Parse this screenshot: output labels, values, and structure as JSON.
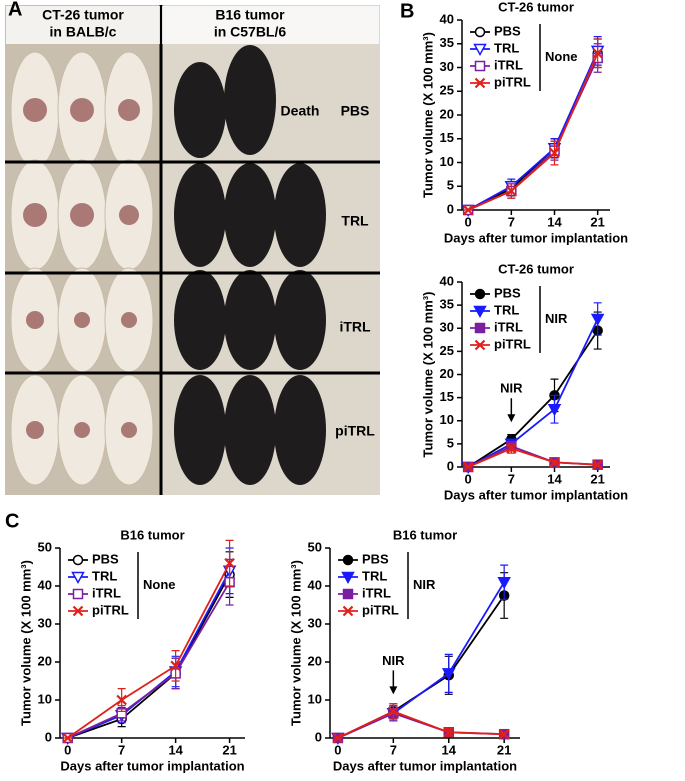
{
  "panel_labels": [
    "A",
    "B",
    "C"
  ],
  "photo_panel": {
    "columns": [
      [
        "CT-26 tumor",
        "in BALB/c"
      ],
      [
        "B16 tumor",
        "in C57BL/6"
      ]
    ],
    "rows": [
      "PBS",
      "TRL",
      "iTRL",
      "piTRL"
    ],
    "note": "Death"
  },
  "chart_data": [
    {
      "type": "line",
      "title": "CT-26 tumor",
      "xlabel": "Days after tumor implantation",
      "ylabel": "Tumor volume (X 100 mm³)",
      "x": [
        0,
        7,
        14,
        21
      ],
      "xlim": [
        -1,
        23
      ],
      "xticks": [
        0,
        7,
        14,
        21
      ],
      "ylim": [
        0,
        40
      ],
      "yticks": [
        0,
        5,
        10,
        15,
        20,
        25,
        30,
        35,
        40
      ],
      "filled": false,
      "legend": "upper left",
      "group_label": "None",
      "series": [
        {
          "name": "PBS",
          "color": "#000000",
          "marker": "circle",
          "values": [
            0,
            4.5,
            13,
            33
          ],
          "errors": [
            0,
            1.5,
            2,
            3
          ]
        },
        {
          "name": "TRL",
          "color": "#1a1aff",
          "marker": "triangle",
          "values": [
            0,
            5,
            13,
            33.5
          ],
          "errors": [
            0,
            1.5,
            2,
            3
          ]
        },
        {
          "name": "iTRL",
          "color": "#7a1fa0",
          "marker": "square",
          "values": [
            0,
            4,
            12.5,
            32
          ],
          "errors": [
            0,
            1.5,
            2,
            3
          ]
        },
        {
          "name": "piTRL",
          "color": "#e0201a",
          "marker": "star",
          "values": [
            0,
            4,
            12,
            33
          ],
          "errors": [
            0,
            1.5,
            2.5,
            3
          ]
        }
      ]
    },
    {
      "type": "line",
      "title": "CT-26 tumor",
      "xlabel": "Days after tumor implantation",
      "ylabel": "Tumor volume (X 100 mm³)",
      "x": [
        0,
        7,
        14,
        21
      ],
      "xlim": [
        -1,
        23
      ],
      "xticks": [
        0,
        7,
        14,
        21
      ],
      "ylim": [
        0,
        40
      ],
      "yticks": [
        0,
        5,
        10,
        15,
        20,
        25,
        30,
        35,
        40
      ],
      "filled": true,
      "legend": "upper left",
      "group_label": "NIR",
      "annotation": {
        "text": "NIR",
        "x": 7
      },
      "series": [
        {
          "name": "PBS",
          "color": "#000000",
          "marker": "circle",
          "values": [
            0,
            6,
            15.5,
            29.5
          ],
          "errors": [
            0,
            1,
            3.5,
            4
          ]
        },
        {
          "name": "TRL",
          "color": "#1a1aff",
          "marker": "triangle",
          "values": [
            0,
            5,
            12.5,
            32
          ],
          "errors": [
            0,
            1,
            3,
            3.5
          ]
        },
        {
          "name": "iTRL",
          "color": "#7a1fa0",
          "marker": "square",
          "values": [
            0,
            4.5,
            1,
            0.5
          ],
          "errors": [
            0,
            1,
            0.5,
            0.3
          ]
        },
        {
          "name": "piTRL",
          "color": "#e0201a",
          "marker": "star",
          "values": [
            0,
            4,
            1,
            0.5
          ],
          "errors": [
            0,
            1,
            0.5,
            0.3
          ]
        }
      ]
    },
    {
      "type": "line",
      "title": "B16 tumor",
      "xlabel": "Days after tumor implantation",
      "ylabel": "Tumor volume (X 100 mm³)",
      "x": [
        0,
        7,
        14,
        21
      ],
      "xlim": [
        -1,
        23
      ],
      "xticks": [
        0,
        7,
        14,
        21
      ],
      "ylim": [
        0,
        50
      ],
      "yticks": [
        0,
        10,
        20,
        30,
        40,
        50
      ],
      "filled": false,
      "legend": "upper left",
      "group_label": "None",
      "series": [
        {
          "name": "PBS",
          "color": "#000000",
          "marker": "circle",
          "values": [
            0,
            5,
            17,
            43
          ],
          "errors": [
            0,
            2,
            4,
            6
          ]
        },
        {
          "name": "TRL",
          "color": "#1a1aff",
          "marker": "triangle",
          "values": [
            0,
            6,
            17.5,
            44
          ],
          "errors": [
            0,
            2,
            4,
            6
          ]
        },
        {
          "name": "iTRL",
          "color": "#7a1fa0",
          "marker": "square",
          "values": [
            0,
            6.5,
            17,
            41
          ],
          "errors": [
            0,
            2,
            4,
            6
          ]
        },
        {
          "name": "piTRL",
          "color": "#e0201a",
          "marker": "star",
          "values": [
            0,
            10,
            19,
            46
          ],
          "errors": [
            0,
            3,
            4,
            6
          ]
        }
      ]
    },
    {
      "type": "line",
      "title": "B16 tumor",
      "xlabel": "Days after tumor implantation",
      "ylabel": "Tumor volume (X 100 mm³)",
      "x": [
        0,
        7,
        14,
        21
      ],
      "xlim": [
        -1,
        23
      ],
      "xticks": [
        0,
        7,
        14,
        21
      ],
      "ylim": [
        0,
        50
      ],
      "yticks": [
        0,
        10,
        20,
        30,
        40,
        50
      ],
      "filled": true,
      "legend": "upper left",
      "group_label": "NIR",
      "annotation": {
        "text": "NIR",
        "x": 7
      },
      "series": [
        {
          "name": "PBS",
          "color": "#000000",
          "marker": "circle",
          "values": [
            0,
            7,
            16.5,
            37.5
          ],
          "errors": [
            0,
            2,
            5,
            6
          ]
        },
        {
          "name": "TRL",
          "color": "#1a1aff",
          "marker": "triangle",
          "values": [
            0,
            6.5,
            17,
            41
          ],
          "errors": [
            0,
            2,
            5,
            4.5
          ]
        },
        {
          "name": "iTRL",
          "color": "#7a1fa0",
          "marker": "square",
          "values": [
            0,
            6.5,
            1.5,
            1
          ],
          "errors": [
            0,
            2,
            1,
            0.5
          ]
        },
        {
          "name": "piTRL",
          "color": "#e0201a",
          "marker": "star",
          "values": [
            0,
            7,
            1.5,
            1
          ],
          "errors": [
            0,
            2,
            1,
            0.5
          ]
        }
      ]
    }
  ]
}
